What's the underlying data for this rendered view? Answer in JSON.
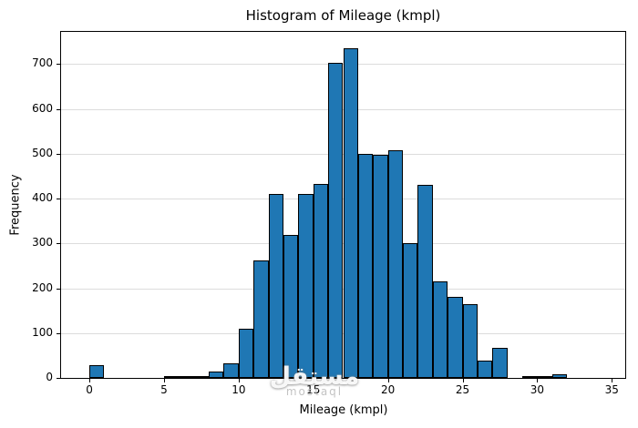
{
  "watermark": {
    "arabic": "مستقل",
    "latin": "mostaql"
  },
  "chart_data": {
    "type": "bar",
    "subtype": "histogram",
    "title": "Histogram of Mileage (kmpl)",
    "xlabel": "Mileage (kmpl)",
    "ylabel": "Frequency",
    "bin_start": 0,
    "bin_width": 1,
    "values": [
      28,
      0,
      0,
      0,
      0,
      2,
      3,
      2,
      15,
      33,
      110,
      262,
      410,
      320,
      410,
      432,
      703,
      735,
      500,
      497,
      507,
      300,
      430,
      215,
      180,
      165,
      38,
      68,
      0,
      2,
      3,
      8,
      0,
      0,
      0
    ],
    "xticks": [
      0,
      5,
      10,
      15,
      20,
      25,
      30,
      35
    ],
    "yticks": [
      0,
      100,
      200,
      300,
      400,
      500,
      600,
      700
    ],
    "xlim": [
      -1.9,
      35.9
    ],
    "ylim": [
      0,
      772
    ],
    "grid": "horizontal",
    "legend": "none",
    "bar_color": "#1f77b4",
    "bar_edge_color": "#000000",
    "grid_color": "#dcdcdc",
    "spine_color": "#000000",
    "background_color": "#ffffff"
  }
}
